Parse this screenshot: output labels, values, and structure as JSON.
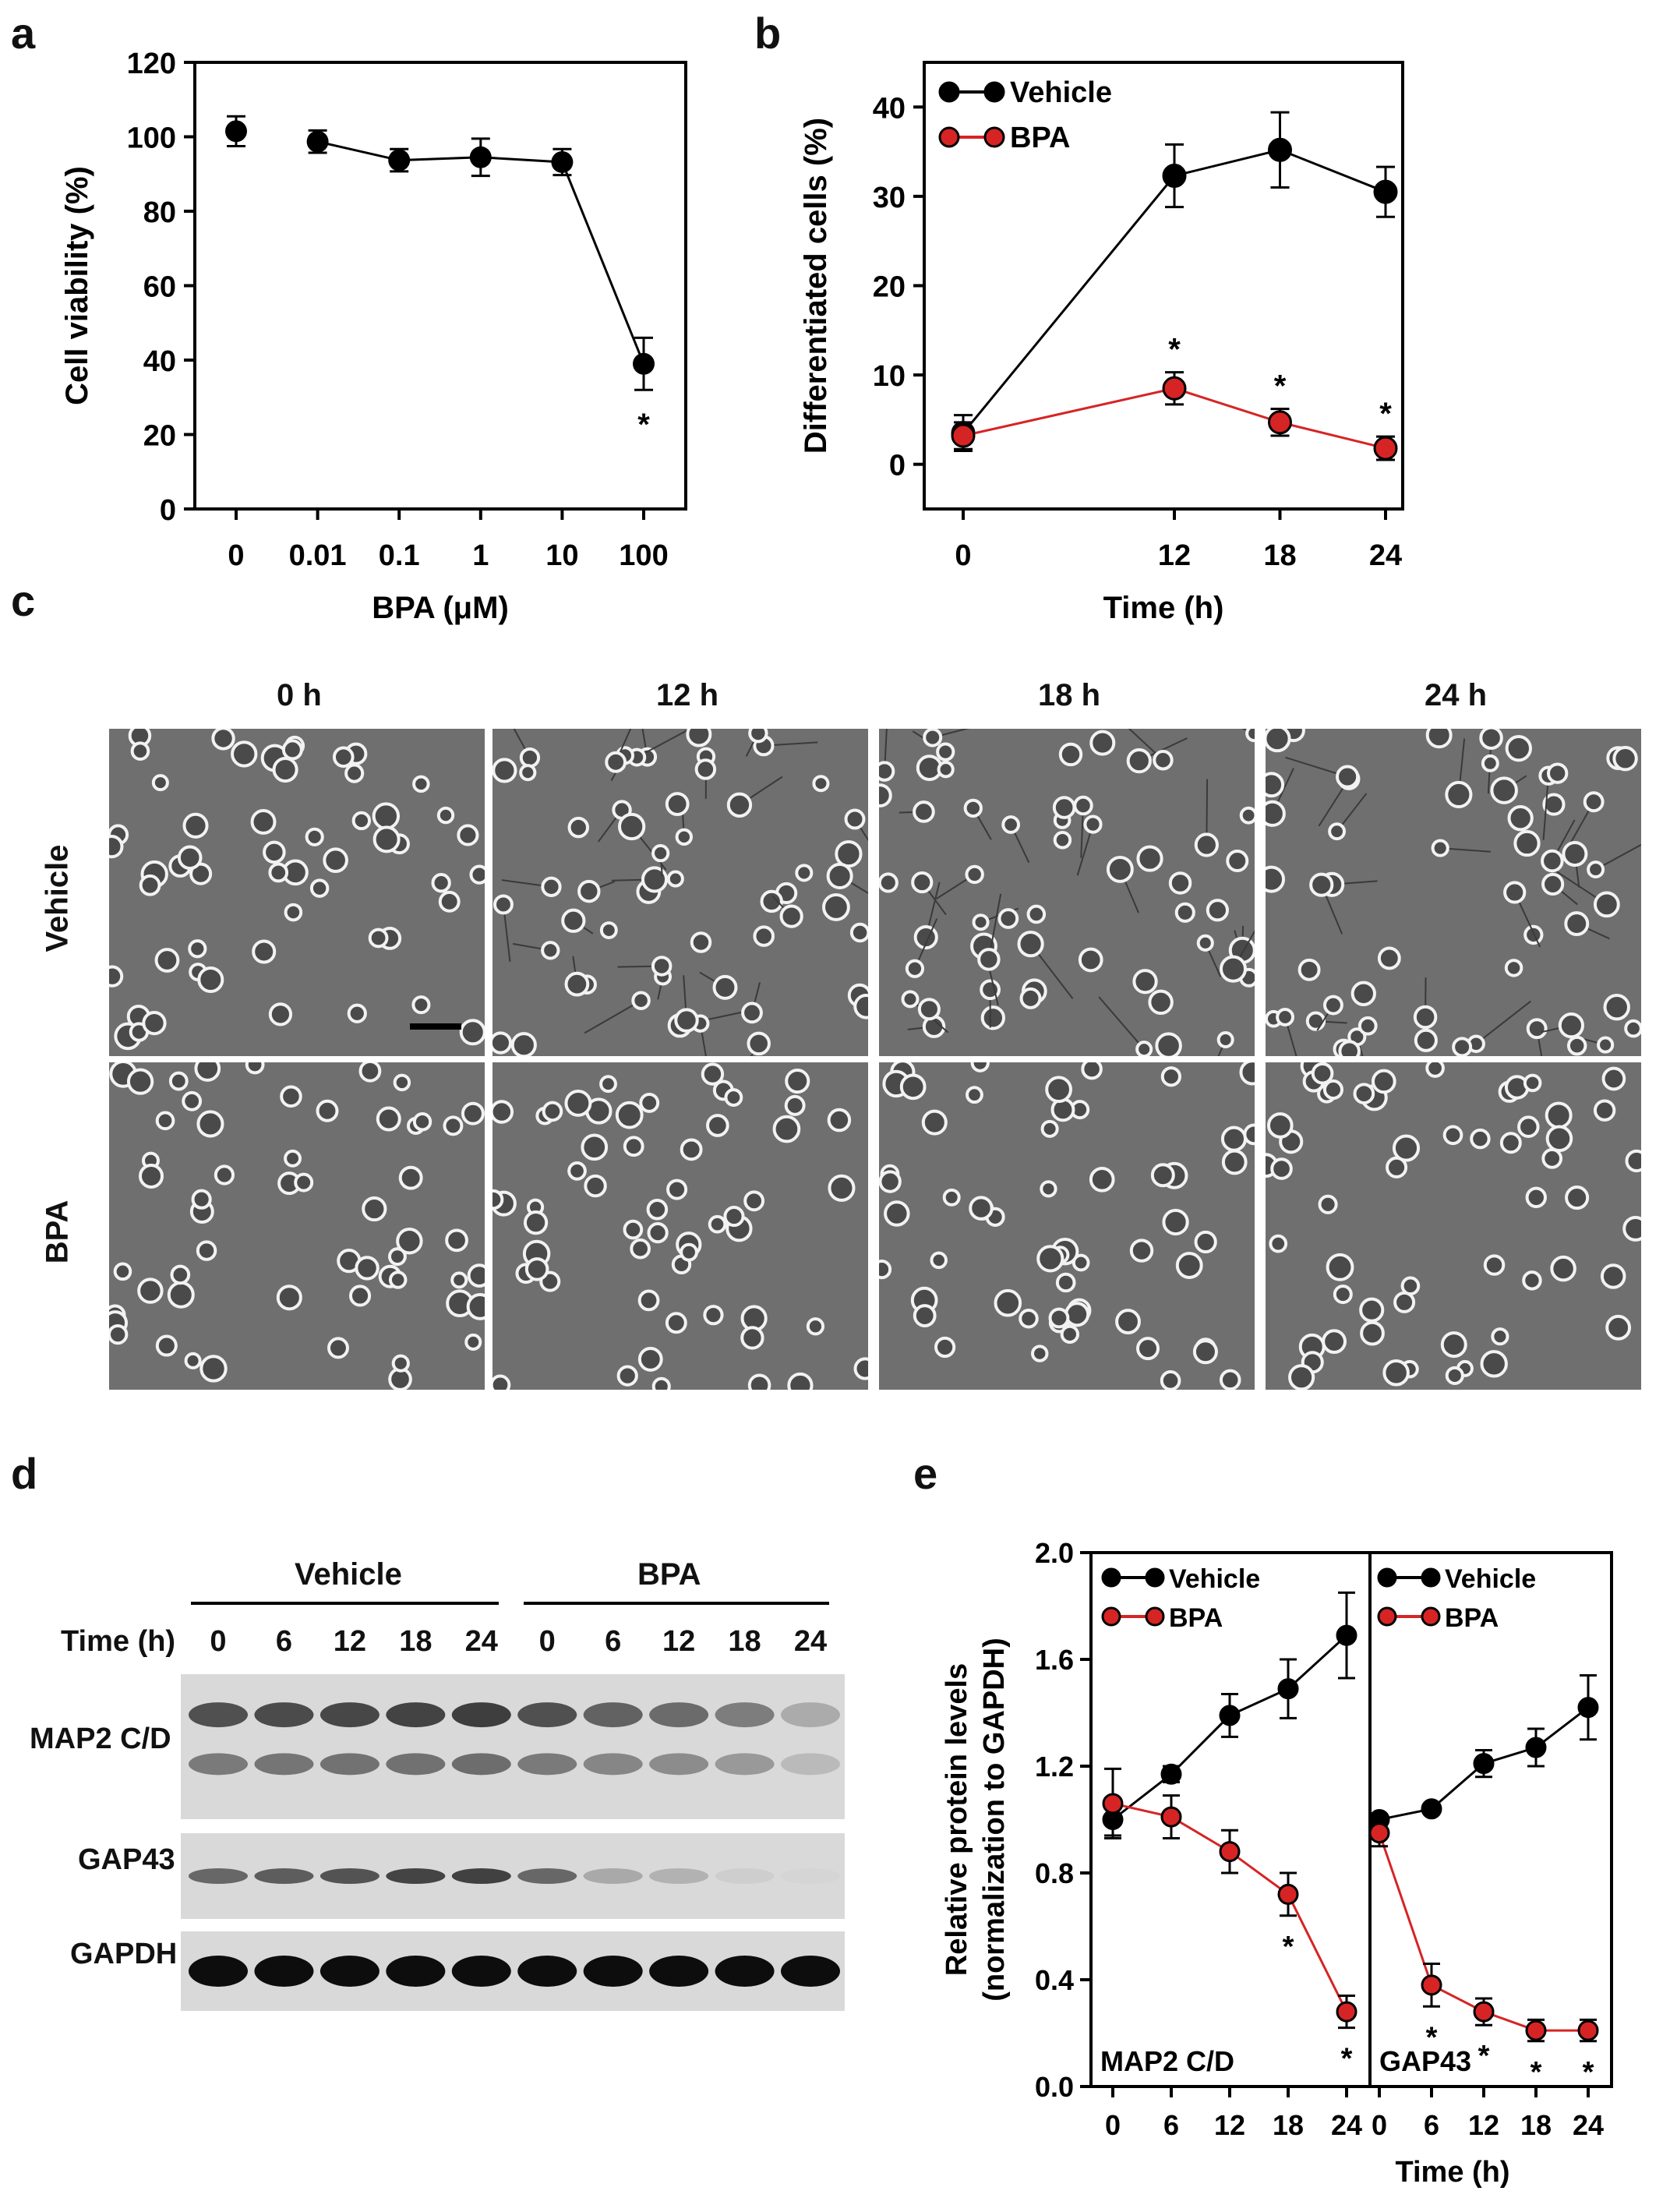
{
  "panel_labels": {
    "a": "a",
    "b": "b",
    "c": "c",
    "d": "d",
    "e": "e"
  },
  "chart_data": [
    {
      "id": "a",
      "type": "line",
      "categories": [
        "0",
        "0.01",
        "0.1",
        "1",
        "10",
        "100"
      ],
      "series": [
        {
          "name": "Cell viability",
          "values": [
            101.5,
            98.7,
            93.7,
            94.5,
            93.2,
            39.0
          ],
          "errors": [
            4,
            3,
            3,
            5,
            3.5,
            7
          ],
          "color": "#000000"
        }
      ],
      "significance": [
        {
          "category": "100",
          "label": "*"
        }
      ],
      "xlabel": "BPA (μM)",
      "ylabel": "Cell viability (%)",
      "ylim": [
        0,
        120
      ],
      "yticks": [
        "0",
        "20",
        "40",
        "60",
        "80",
        "100",
        "120"
      ]
    },
    {
      "id": "b",
      "type": "line",
      "x": [
        0,
        12,
        18,
        24
      ],
      "xticks": [
        "0",
        "12",
        "18",
        "24"
      ],
      "series": [
        {
          "name": "Vehicle",
          "values": [
            3.5,
            32.3,
            35.2,
            30.5
          ],
          "errors": [
            2,
            3.5,
            4.2,
            2.8
          ],
          "color": "#000000"
        },
        {
          "name": "BPA",
          "values": [
            3.2,
            8.5,
            4.7,
            1.8
          ],
          "errors": [
            1.5,
            1.8,
            1.5,
            1.3
          ],
          "color": "#d62424"
        }
      ],
      "significance": [
        {
          "x": 12,
          "label": "*"
        },
        {
          "x": 18,
          "label": "*"
        },
        {
          "x": 24,
          "label": "*"
        }
      ],
      "xlabel": "Time (h)",
      "ylabel": "Differentiated cells  (%)",
      "ylim": [
        -5,
        45
      ],
      "yticks": [
        "0",
        "10",
        "20",
        "30",
        "40"
      ]
    },
    {
      "id": "e",
      "type": "line",
      "xlabel": "Time (h)",
      "ylabel": "Relative protein levels (normalization to GAPDH)",
      "ylim": [
        0,
        2.0
      ],
      "yticks": [
        "0.0",
        "0.4",
        "0.8",
        "1.2",
        "1.6",
        "2.0"
      ],
      "subpanels": [
        {
          "label": "MAP2 C/D",
          "xticks": [
            "0",
            "6",
            "12",
            "18",
            "24"
          ],
          "series": [
            {
              "name": "Vehicle",
              "values": [
                1.0,
                1.17,
                1.39,
                1.49,
                1.69
              ],
              "errors": [
                0.06,
                0.03,
                0.08,
                0.11,
                0.16
              ],
              "color": "#000000"
            },
            {
              "name": "BPA",
              "values": [
                1.06,
                1.01,
                0.88,
                0.72,
                0.28
              ],
              "errors": [
                0.13,
                0.08,
                0.08,
                0.08,
                0.06
              ],
              "color": "#d62424"
            }
          ],
          "significance": [
            {
              "x": "18",
              "label": "*"
            },
            {
              "x": "24",
              "label": "*"
            }
          ]
        },
        {
          "label": "GAP43",
          "xticks": [
            "0",
            "6",
            "12",
            "18",
            "24"
          ],
          "series": [
            {
              "name": "Vehicle",
              "values": [
                1.0,
                1.04,
                1.21,
                1.27,
                1.42
              ],
              "errors": [
                0.02,
                0.02,
                0.05,
                0.07,
                0.12
              ],
              "color": "#000000"
            },
            {
              "name": "BPA",
              "values": [
                0.95,
                0.38,
                0.28,
                0.21,
                0.21
              ],
              "errors": [
                0.05,
                0.08,
                0.05,
                0.04,
                0.04
              ],
              "color": "#d62424"
            }
          ],
          "significance": [
            {
              "x": "6",
              "label": "*"
            },
            {
              "x": "12",
              "label": "*"
            },
            {
              "x": "18",
              "label": "*"
            },
            {
              "x": "24",
              "label": "*"
            }
          ]
        }
      ]
    }
  ],
  "panel_c": {
    "columns": [
      "0 h",
      "12 h",
      "18 h",
      "24 h"
    ],
    "rows": [
      "Vehicle",
      "BPA"
    ]
  },
  "panel_d": {
    "groups": [
      "Vehicle",
      "BPA"
    ],
    "time_label": "Time (h)",
    "times": [
      "0",
      "6",
      "12",
      "18",
      "24",
      "0",
      "6",
      "12",
      "18",
      "24"
    ],
    "rows": [
      "MAP2 C/D",
      "GAP43",
      "GAPDH"
    ],
    "band_intensity": {
      "MAP2 C/D": [
        0.75,
        0.78,
        0.8,
        0.82,
        0.85,
        0.75,
        0.65,
        0.6,
        0.5,
        0.25
      ],
      "GAP43": [
        0.6,
        0.65,
        0.7,
        0.78,
        0.8,
        0.6,
        0.25,
        0.2,
        0.05,
        0.02
      ],
      "GAPDH": [
        1,
        1,
        1,
        1,
        1,
        1,
        1,
        1,
        1,
        1
      ]
    }
  }
}
